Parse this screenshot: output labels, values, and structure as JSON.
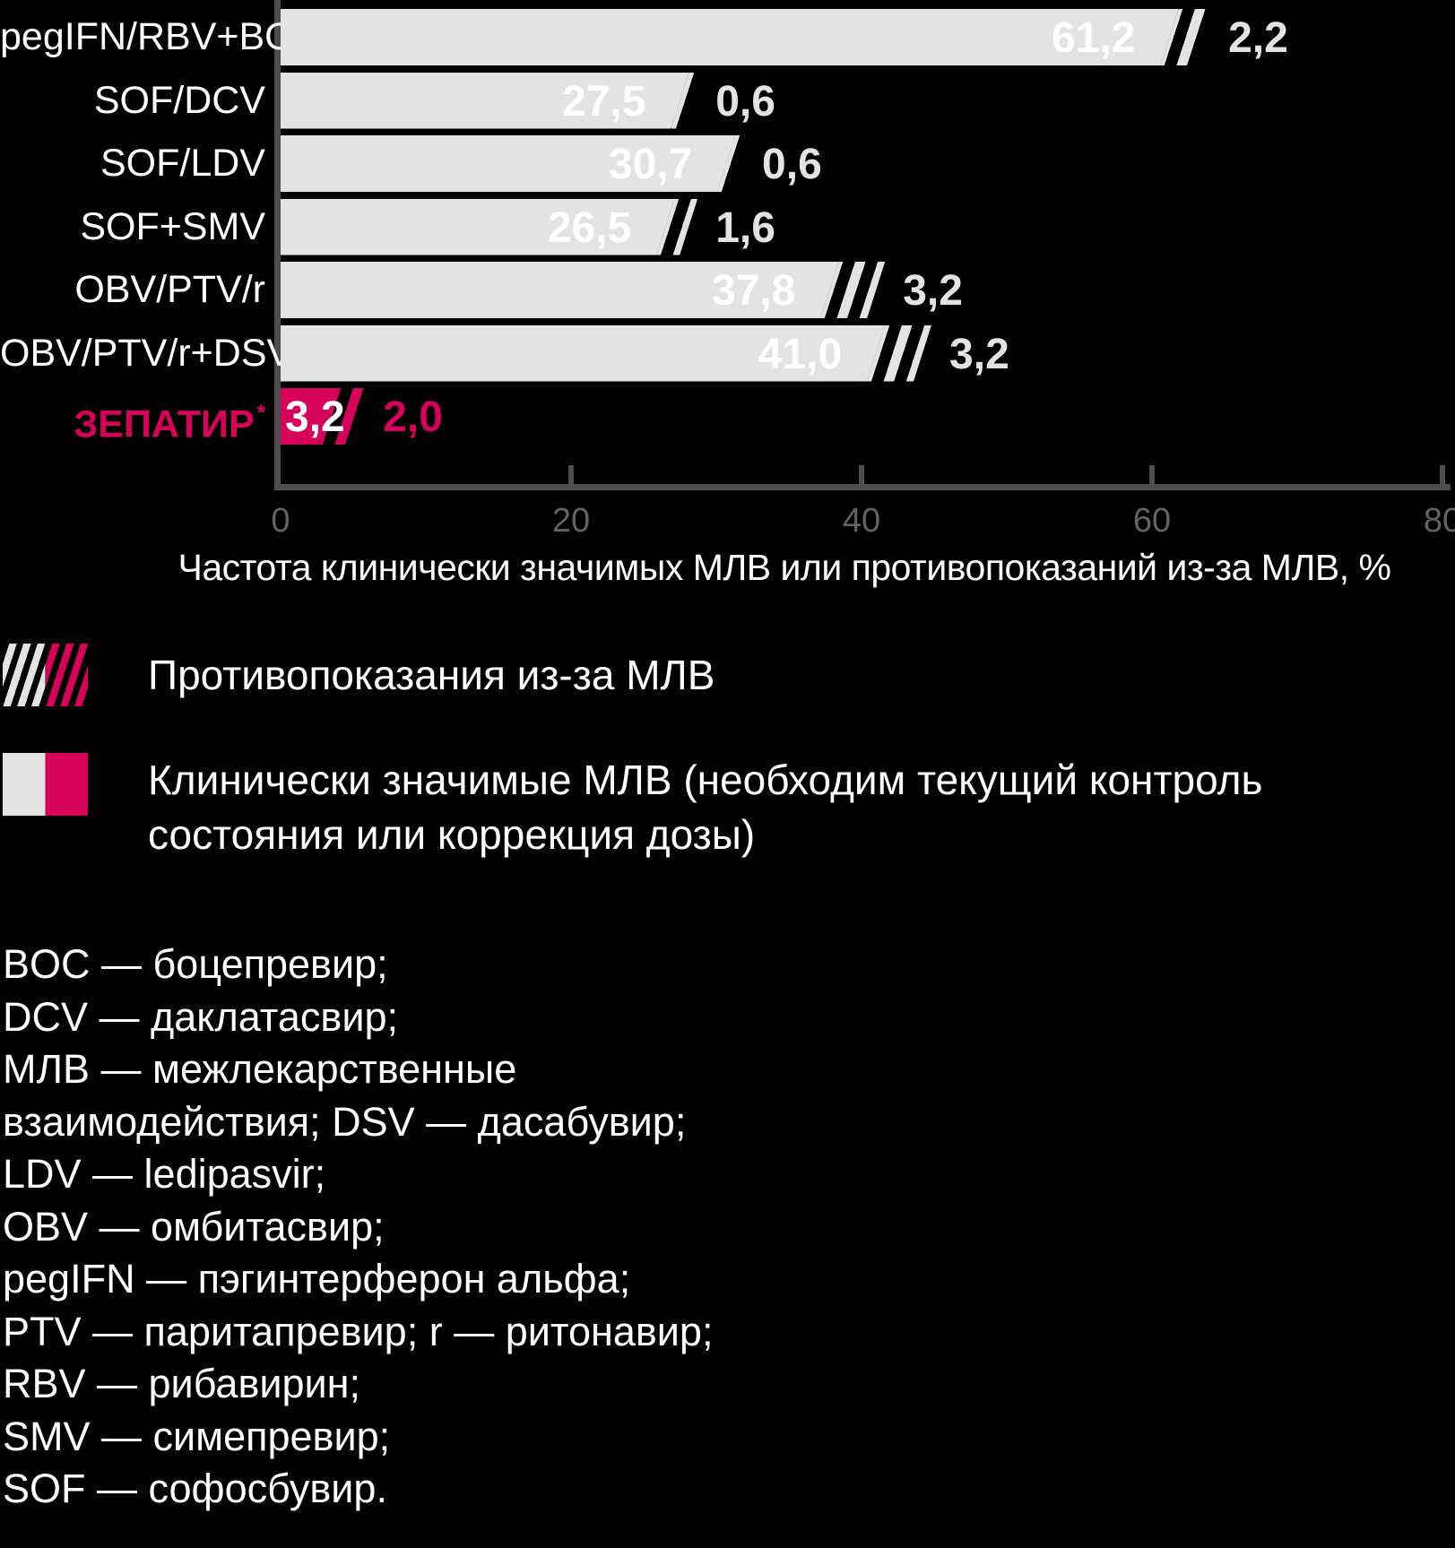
{
  "colors": {
    "background": "#000000",
    "bar_fill": "#e3e3e3",
    "accent": "#d60158",
    "axis_line": "#4d4d4d",
    "tick_label": "#636363",
    "text": "#ffffff"
  },
  "chart_data": {
    "type": "bar",
    "orientation": "horizontal",
    "categories": [
      "pegIFN/RBV+BOC",
      "SOF/DCV",
      "SOF/LDV",
      "SOF+SMV",
      "OBV/PTV/r",
      "OBV/PTV/r+DSV",
      "ЗЕПАТИР"
    ],
    "series": [
      {
        "name": "Клинически значимые МЛВ (необходим текущий контроль состояния или коррекция дозы)",
        "values": [
          61.2,
          27.5,
          30.7,
          26.5,
          37.8,
          41.0,
          3.2
        ],
        "labels": [
          "61,2",
          "27,5",
          "30,7",
          "26,5",
          "37,8",
          "41,0",
          "3,2"
        ]
      },
      {
        "name": "Противопоказания из-за МЛВ",
        "values": [
          2.2,
          0.6,
          0.6,
          1.6,
          3.2,
          3.2,
          2.0
        ],
        "labels": [
          "2,2",
          "0,6",
          "0,6",
          "1,6",
          "3,2",
          "3,2",
          "2,0"
        ]
      }
    ],
    "highlight_category": "ЗЕПАТИР",
    "highlight_suffix": "*",
    "xlabel": "Частота клинически значимых МЛВ или противопоказаний из-за МЛВ, %",
    "xlim": [
      0,
      80
    ],
    "xticks": [
      0,
      20,
      40,
      60,
      80
    ],
    "xtick_labels": [
      "0",
      "20",
      "40",
      "60",
      "80"
    ],
    "grid": false,
    "legend_position": "below"
  },
  "legend": [
    {
      "label": "Противопоказания из-за МЛВ",
      "style": "hatched"
    },
    {
      "label": "Клинически значимые МЛВ (необходим текущий контроль\nсостояния или коррекция дозы)",
      "style": "solid"
    }
  ],
  "footnotes": [
    "BOC — боцепревир;",
    "DCV — даклатасвир;",
    "МЛВ — межлекарственные",
    "взаимодействия; DSV — дасабувир;",
    "LDV — ledipasvir;",
    "OBV — омбитасвир;",
    "pegIFN — пэгинтерферон альфа;",
    "PTV — паритапревир; r — ритонавир;",
    "RBV — рибавирин;",
    "SMV — симепревир;",
    "SOF — софосбувир."
  ]
}
